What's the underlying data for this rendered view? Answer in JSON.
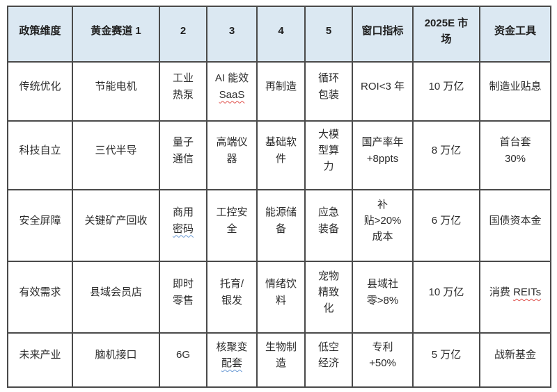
{
  "document": {
    "type": "word-processor-table",
    "colors": {
      "header_bg": "#dbe8f2",
      "grid_border": "#4a4a4a",
      "text": "#2b2b2b",
      "spellcheck_red": "#e0524d",
      "grammar_blue": "#6a9ad4"
    }
  },
  "table": {
    "headers": [
      "政策维度",
      "黄金赛道 1",
      "2",
      "3",
      "4",
      "5",
      "窗口指标",
      "2025E 市\n场",
      "资金工具"
    ],
    "rows": [
      [
        [
          {
            "t": "传统优化"
          }
        ],
        [
          {
            "t": "节能电机"
          }
        ],
        [
          {
            "t": "工业\n热泵"
          }
        ],
        [
          {
            "t": "AI 能效\n"
          },
          {
            "t": "SaaS",
            "mark": "red"
          }
        ],
        [
          {
            "t": "再制造"
          }
        ],
        [
          {
            "t": "循环\n包装"
          }
        ],
        [
          {
            "t": "ROI<3 年"
          }
        ],
        [
          {
            "t": "10 万亿"
          }
        ],
        [
          {
            "t": "制造业贴息"
          }
        ]
      ],
      [
        [
          {
            "t": "科技自立"
          }
        ],
        [
          {
            "t": "三代半导"
          }
        ],
        [
          {
            "t": "量子\n通信"
          }
        ],
        [
          {
            "t": "高端仪\n器"
          }
        ],
        [
          {
            "t": "基础软\n件"
          }
        ],
        [
          {
            "t": "大模\n型算\n力"
          }
        ],
        [
          {
            "t": "国产率年\n+8ppts"
          }
        ],
        [
          {
            "t": "8 万亿"
          }
        ],
        [
          {
            "t": "首台套\n30%"
          }
        ]
      ],
      [
        [
          {
            "t": "安全屏障"
          }
        ],
        [
          {
            "t": "关键矿产回收"
          }
        ],
        [
          {
            "t": "商用\n"
          },
          {
            "t": "密码",
            "mark": "blue"
          }
        ],
        [
          {
            "t": "工控安\n全"
          }
        ],
        [
          {
            "t": "能源储\n备"
          }
        ],
        [
          {
            "t": "应急\n装备"
          }
        ],
        [
          {
            "t": "补\n贴>20%\n成本"
          }
        ],
        [
          {
            "t": "6 万亿"
          }
        ],
        [
          {
            "t": "国债资本金"
          }
        ]
      ],
      [
        [
          {
            "t": "有效需求"
          }
        ],
        [
          {
            "t": "县域会员店"
          }
        ],
        [
          {
            "t": "即时\n零售"
          }
        ],
        [
          {
            "t": "托育/\n银发"
          }
        ],
        [
          {
            "t": "情绪饮\n料"
          }
        ],
        [
          {
            "t": "宠物\n精致\n化"
          }
        ],
        [
          {
            "t": "县域社\n零>8%"
          }
        ],
        [
          {
            "t": "10 万亿"
          }
        ],
        [
          {
            "t": "消费 "
          },
          {
            "t": "REITs",
            "mark": "red"
          }
        ]
      ],
      [
        [
          {
            "t": "未来产业"
          }
        ],
        [
          {
            "t": "脑机接口"
          }
        ],
        [
          {
            "t": "6G"
          }
        ],
        [
          {
            "t": "核聚变\n"
          },
          {
            "t": "配套",
            "mark": "blue"
          }
        ],
        [
          {
            "t": "生物制\n造"
          }
        ],
        [
          {
            "t": "低空\n经济"
          }
        ],
        [
          {
            "t": "专利\n+50%"
          }
        ],
        [
          {
            "t": "5 万亿"
          }
        ],
        [
          {
            "t": "战新基金"
          }
        ]
      ]
    ]
  }
}
